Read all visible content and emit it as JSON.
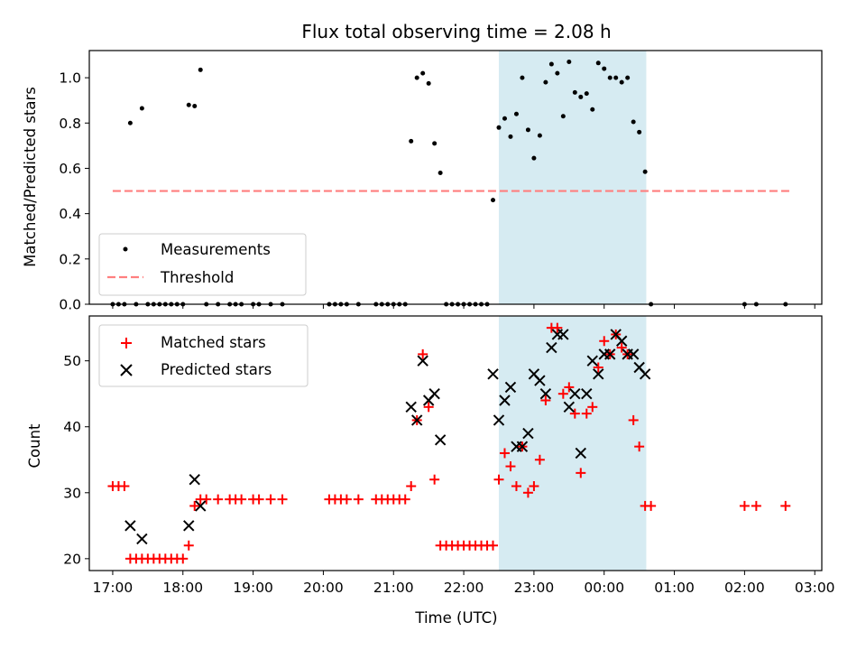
{
  "figure": {
    "title": "Flux total observing time = 2.08 h",
    "xlabel": "Time (UTC)"
  },
  "colors": {
    "measurements": "#000000",
    "threshold": "#ff7f7f",
    "matched": "#ff0000",
    "predicted": "#000000",
    "shade": "#add8e6"
  },
  "chart_data": [
    {
      "type": "scatter",
      "ylabel": "Matched/Predicted stars",
      "xlim": [
        "16:40",
        "03:06"
      ],
      "ylim": [
        0,
        1.12
      ],
      "yticks": [
        0.0,
        0.2,
        0.4,
        0.6,
        0.8,
        1.0
      ],
      "ytick_labels": [
        "0.0",
        "0.2",
        "0.4",
        "0.6",
        "0.8",
        "1.0"
      ],
      "shaded_interval": [
        "22:30",
        "00:36"
      ],
      "legend_position": "lower-left",
      "series": [
        {
          "name": "Measurements",
          "marker": "dot",
          "points": [
            [
              "17:00",
              0
            ],
            [
              "17:05",
              0
            ],
            [
              "17:10",
              0
            ],
            [
              "17:15",
              0.8
            ],
            [
              "17:20",
              0
            ],
            [
              "17:25",
              0.865
            ],
            [
              "17:30",
              0
            ],
            [
              "17:35",
              0
            ],
            [
              "17:40",
              0
            ],
            [
              "17:45",
              0
            ],
            [
              "17:50",
              0
            ],
            [
              "17:55",
              0
            ],
            [
              "18:00",
              0
            ],
            [
              "18:05",
              0.88
            ],
            [
              "18:10",
              0.875
            ],
            [
              "18:15",
              1.035
            ],
            [
              "18:20",
              0
            ],
            [
              "18:30",
              0
            ],
            [
              "18:40",
              0
            ],
            [
              "18:45",
              0
            ],
            [
              "18:50",
              0
            ],
            [
              "19:00",
              0
            ],
            [
              "19:05",
              0
            ],
            [
              "19:15",
              0
            ],
            [
              "19:25",
              0
            ],
            [
              "20:05",
              0
            ],
            [
              "20:10",
              0
            ],
            [
              "20:15",
              0
            ],
            [
              "20:20",
              0
            ],
            [
              "20:30",
              0
            ],
            [
              "20:45",
              0
            ],
            [
              "20:50",
              0
            ],
            [
              "20:55",
              0
            ],
            [
              "21:00",
              0
            ],
            [
              "21:05",
              0
            ],
            [
              "21:10",
              0
            ],
            [
              "21:15",
              0.72
            ],
            [
              "21:20",
              1.0
            ],
            [
              "21:25",
              1.02
            ],
            [
              "21:30",
              0.975
            ],
            [
              "21:35",
              0.71
            ],
            [
              "21:40",
              0.58
            ],
            [
              "21:45",
              0
            ],
            [
              "21:50",
              0
            ],
            [
              "21:55",
              0
            ],
            [
              "22:00",
              0
            ],
            [
              "22:05",
              0
            ],
            [
              "22:10",
              0
            ],
            [
              "22:15",
              0
            ],
            [
              "22:20",
              0
            ],
            [
              "22:25",
              0.46
            ],
            [
              "22:30",
              0.78
            ],
            [
              "22:35",
              0.82
            ],
            [
              "22:40",
              0.74
            ],
            [
              "22:45",
              0.84
            ],
            [
              "22:50",
              1.0
            ],
            [
              "22:55",
              0.77
            ],
            [
              "23:00",
              0.645
            ],
            [
              "23:05",
              0.745
            ],
            [
              "23:10",
              0.98
            ],
            [
              "23:15",
              1.06
            ],
            [
              "23:20",
              1.02
            ],
            [
              "23:25",
              0.83
            ],
            [
              "23:30",
              1.07
            ],
            [
              "23:35",
              0.935
            ],
            [
              "23:40",
              0.915
            ],
            [
              "23:45",
              0.93
            ],
            [
              "23:50",
              0.86
            ],
            [
              "23:55",
              1.065
            ],
            [
              "00:00",
              1.04
            ],
            [
              "00:05",
              1.0
            ],
            [
              "00:10",
              1.0
            ],
            [
              "00:15",
              0.98
            ],
            [
              "00:20",
              1.0
            ],
            [
              "00:25",
              0.805
            ],
            [
              "00:30",
              0.76
            ],
            [
              "00:35",
              0.585
            ],
            [
              "00:40",
              0
            ],
            [
              "02:00",
              0
            ],
            [
              "02:10",
              0
            ],
            [
              "02:35",
              0
            ]
          ]
        },
        {
          "name": "Threshold",
          "marker": "dashed-line",
          "points": [
            [
              "17:00",
              0.5
            ],
            [
              "02:40",
              0.5
            ]
          ]
        }
      ]
    },
    {
      "type": "scatter",
      "ylabel": "Count",
      "xlim": [
        "16:40",
        "03:06"
      ],
      "ylim": [
        18.2,
        56.8
      ],
      "yticks": [
        20,
        30,
        40,
        50
      ],
      "ytick_labels": [
        "20",
        "30",
        "40",
        "50"
      ],
      "xtick_labels": [
        "17:00",
        "18:00",
        "19:00",
        "20:00",
        "21:00",
        "22:00",
        "23:00",
        "00:00",
        "01:00",
        "02:00",
        "03:00"
      ],
      "shaded_interval": [
        "22:30",
        "00:36"
      ],
      "legend_position": "upper-left",
      "series": [
        {
          "name": "Matched stars",
          "marker": "plus",
          "points": [
            [
              "17:00",
              31
            ],
            [
              "17:05",
              31
            ],
            [
              "17:10",
              31
            ],
            [
              "17:15",
              20
            ],
            [
              "17:20",
              20
            ],
            [
              "17:25",
              20
            ],
            [
              "17:30",
              20
            ],
            [
              "17:35",
              20
            ],
            [
              "17:40",
              20
            ],
            [
              "17:45",
              20
            ],
            [
              "17:50",
              20
            ],
            [
              "17:55",
              20
            ],
            [
              "18:00",
              20
            ],
            [
              "18:05",
              22
            ],
            [
              "18:10",
              28
            ],
            [
              "18:15",
              29
            ],
            [
              "18:20",
              29
            ],
            [
              "18:30",
              29
            ],
            [
              "18:40",
              29
            ],
            [
              "18:45",
              29
            ],
            [
              "18:50",
              29
            ],
            [
              "19:00",
              29
            ],
            [
              "19:05",
              29
            ],
            [
              "19:15",
              29
            ],
            [
              "19:25",
              29
            ],
            [
              "20:05",
              29
            ],
            [
              "20:10",
              29
            ],
            [
              "20:15",
              29
            ],
            [
              "20:20",
              29
            ],
            [
              "20:30",
              29
            ],
            [
              "20:45",
              29
            ],
            [
              "20:50",
              29
            ],
            [
              "20:55",
              29
            ],
            [
              "21:00",
              29
            ],
            [
              "21:05",
              29
            ],
            [
              "21:10",
              29
            ],
            [
              "21:15",
              31
            ],
            [
              "21:20",
              41
            ],
            [
              "21:25",
              51
            ],
            [
              "21:30",
              43
            ],
            [
              "21:35",
              32
            ],
            [
              "21:40",
              22
            ],
            [
              "21:45",
              22
            ],
            [
              "21:50",
              22
            ],
            [
              "21:55",
              22
            ],
            [
              "22:00",
              22
            ],
            [
              "22:05",
              22
            ],
            [
              "22:10",
              22
            ],
            [
              "22:15",
              22
            ],
            [
              "22:20",
              22
            ],
            [
              "22:25",
              22
            ],
            [
              "22:30",
              32
            ],
            [
              "22:35",
              36
            ],
            [
              "22:40",
              34
            ],
            [
              "22:45",
              31
            ],
            [
              "22:50",
              37
            ],
            [
              "22:55",
              30
            ],
            [
              "23:00",
              31
            ],
            [
              "23:05",
              35
            ],
            [
              "23:10",
              44
            ],
            [
              "23:15",
              55
            ],
            [
              "23:20",
              55
            ],
            [
              "23:25",
              45
            ],
            [
              "23:30",
              46
            ],
            [
              "23:35",
              42
            ],
            [
              "23:40",
              33
            ],
            [
              "23:45",
              42
            ],
            [
              "23:50",
              43
            ],
            [
              "23:55",
              49
            ],
            [
              "00:00",
              53
            ],
            [
              "00:05",
              51
            ],
            [
              "00:10",
              54
            ],
            [
              "00:15",
              52
            ],
            [
              "00:20",
              51
            ],
            [
              "00:25",
              41
            ],
            [
              "00:30",
              37
            ],
            [
              "00:35",
              28
            ],
            [
              "00:40",
              28
            ],
            [
              "02:00",
              28
            ],
            [
              "02:10",
              28
            ],
            [
              "02:35",
              28
            ]
          ]
        },
        {
          "name": "Predicted stars",
          "marker": "x",
          "points": [
            [
              "17:15",
              25
            ],
            [
              "17:25",
              23
            ],
            [
              "18:05",
              25
            ],
            [
              "18:10",
              32
            ],
            [
              "18:15",
              28
            ],
            [
              "21:15",
              43
            ],
            [
              "21:20",
              41
            ],
            [
              "21:25",
              50
            ],
            [
              "21:30",
              44
            ],
            [
              "21:35",
              45
            ],
            [
              "21:40",
              38
            ],
            [
              "22:25",
              48
            ],
            [
              "22:30",
              41
            ],
            [
              "22:35",
              44
            ],
            [
              "22:40",
              46
            ],
            [
              "22:45",
              37
            ],
            [
              "22:50",
              37
            ],
            [
              "22:55",
              39
            ],
            [
              "23:00",
              48
            ],
            [
              "23:05",
              47
            ],
            [
              "23:10",
              45
            ],
            [
              "23:15",
              52
            ],
            [
              "23:20",
              54
            ],
            [
              "23:25",
              54
            ],
            [
              "23:30",
              43
            ],
            [
              "23:35",
              45
            ],
            [
              "23:40",
              36
            ],
            [
              "23:45",
              45
            ],
            [
              "23:50",
              50
            ],
            [
              "23:55",
              48
            ],
            [
              "00:00",
              51
            ],
            [
              "00:05",
              51
            ],
            [
              "00:10",
              54
            ],
            [
              "00:15",
              53
            ],
            [
              "00:20",
              51
            ],
            [
              "00:25",
              51
            ],
            [
              "00:30",
              49
            ],
            [
              "00:35",
              48
            ]
          ]
        }
      ]
    }
  ]
}
